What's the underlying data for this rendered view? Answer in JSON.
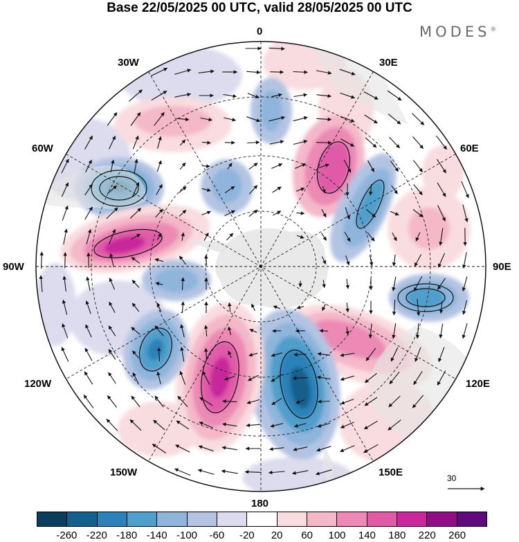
{
  "title": "Base 22/05/2025 00 UTC, valid 28/05/2025 00 UTC",
  "logo": "MODES",
  "logo_mark": "®",
  "projection": "south-polar-stereographic",
  "longitude_labels": {
    "top": "0",
    "top_right": "30E",
    "right_upper": "60E",
    "right": "90E",
    "right_lower": "120E",
    "bottom_right": "150E",
    "bottom": "180",
    "bottom_left": "150W",
    "left_lower": "120W",
    "left": "90W",
    "left_upper": "60W",
    "top_left": "30W"
  },
  "vector_reference": {
    "label": "30"
  },
  "colorbar": {
    "ticks": [
      "-260",
      "-220",
      "-180",
      "-140",
      "-100",
      "-60",
      "-20",
      "20",
      "60",
      "100",
      "140",
      "180",
      "220",
      "260"
    ],
    "colors": [
      "#0b3d5c",
      "#155f8c",
      "#2a82b8",
      "#4f9fcc",
      "#8fb5dc",
      "#b3c4e3",
      "#dcdcee",
      "#ffffff",
      "#f9dcdf",
      "#f4b8c9",
      "#ec89b5",
      "#e05aa8",
      "#c8289b",
      "#8f0e86",
      "#5e0a7a"
    ]
  },
  "colors": {
    "land": "#e5e5e5",
    "graticule": "#222222"
  }
}
